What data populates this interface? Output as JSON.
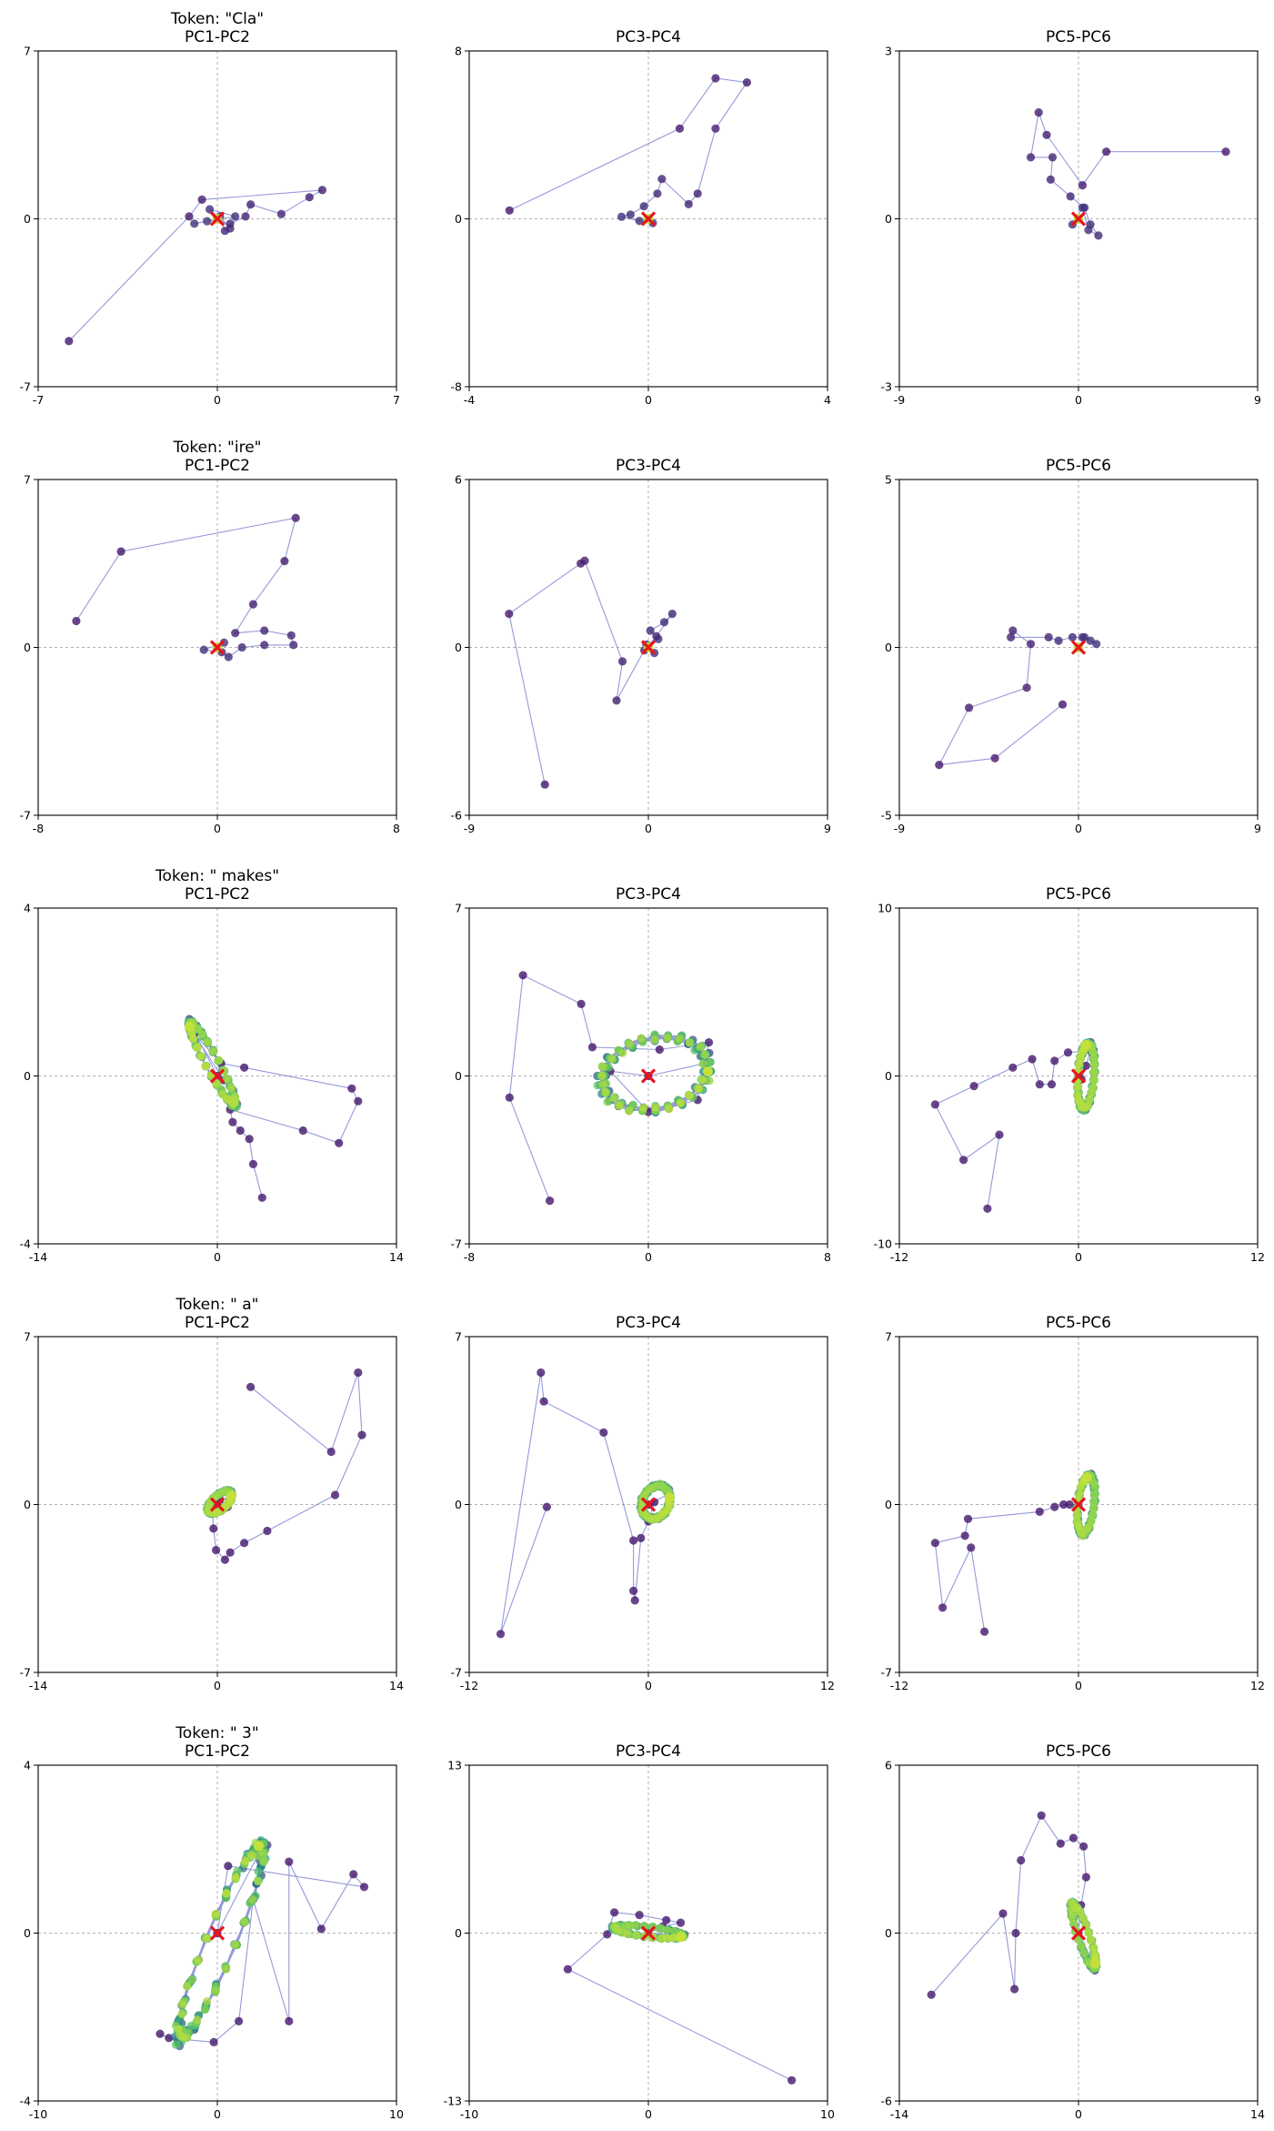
{
  "figure": {
    "background": "#ffffff",
    "rows": 5,
    "cols": 3
  },
  "style": {
    "line_color": "#7b7fcf",
    "early_point_color": "#44176b",
    "late_point_color": "#c5e13a",
    "marker_color": "#e8141c",
    "zero_line_color": "#b0b0b0"
  },
  "chart_data": [
    {
      "type": "scatter",
      "row": 0,
      "col": 0,
      "title_lines": [
        "Token: \"Cla\"",
        "PC1-PC2"
      ],
      "xlim": [
        -7,
        7
      ],
      "ylim": [
        -7,
        7
      ],
      "xticks": [
        "-7",
        "0",
        "7"
      ],
      "yticks": [
        "-7",
        "0",
        "7"
      ],
      "trajectory": [
        [
          -5.8,
          -5.1
        ],
        [
          -1.1,
          0.1
        ],
        [
          -0.6,
          0.8
        ],
        [
          4.1,
          1.2
        ],
        [
          3.6,
          0.9
        ],
        [
          2.5,
          0.2
        ],
        [
          1.3,
          0.6
        ],
        [
          1.1,
          0.1
        ],
        [
          0.5,
          -0.2
        ],
        [
          0.3,
          -0.5
        ],
        [
          0.1,
          0.1
        ],
        [
          0.5,
          -0.4
        ],
        [
          -0.3,
          0.4
        ],
        [
          0.7,
          0.1
        ],
        [
          -0.9,
          -0.2
        ],
        [
          -0.4,
          -0.1
        ],
        [
          0,
          0
        ]
      ],
      "cycles": 0,
      "origin_marker": [
        0,
        0
      ]
    },
    {
      "type": "scatter",
      "row": 0,
      "col": 1,
      "title_lines": [
        "PC3-PC4"
      ],
      "xlim": [
        -4,
        4
      ],
      "ylim": [
        -8,
        8
      ],
      "xticks": [
        "-4",
        "0",
        "4"
      ],
      "yticks": [
        "-8",
        "0",
        "8"
      ],
      "trajectory": [
        [
          -3.1,
          0.4
        ],
        [
          0.7,
          4.3
        ],
        [
          1.5,
          6.7
        ],
        [
          2.2,
          6.5
        ],
        [
          1.5,
          4.3
        ],
        [
          1.1,
          1.2
        ],
        [
          0.9,
          0.7
        ],
        [
          0.3,
          1.9
        ],
        [
          0.2,
          1.2
        ],
        [
          -0.1,
          0.6
        ],
        [
          -0.4,
          0.2
        ],
        [
          -0.6,
          0.1
        ],
        [
          -0.2,
          -0.1
        ],
        [
          0.1,
          -0.2
        ],
        [
          0,
          0
        ]
      ],
      "cycles": 0,
      "origin_marker": [
        0,
        0
      ]
    },
    {
      "type": "scatter",
      "row": 0,
      "col": 2,
      "title_lines": [
        "PC5-PC6"
      ],
      "xlim": [
        -9,
        9
      ],
      "ylim": [
        -3,
        3
      ],
      "xticks": [
        "-9",
        "0",
        "9"
      ],
      "yticks": [
        "-3",
        "0",
        "3"
      ],
      "trajectory": [
        [
          7.4,
          1.2
        ],
        [
          1.4,
          1.2
        ],
        [
          0.2,
          0.6
        ],
        [
          -1.6,
          1.5
        ],
        [
          -2.0,
          1.9
        ],
        [
          -2.4,
          1.1
        ],
        [
          -1.3,
          1.1
        ],
        [
          -1.4,
          0.7
        ],
        [
          -0.4,
          0.4
        ],
        [
          0.3,
          0.2
        ],
        [
          0.6,
          -0.1
        ],
        [
          1.0,
          -0.3
        ],
        [
          0.5,
          -0.2
        ],
        [
          0.2,
          0.2
        ],
        [
          -0.3,
          -0.1
        ],
        [
          0,
          0
        ]
      ],
      "cycles": 0,
      "origin_marker": [
        0,
        0
      ]
    },
    {
      "type": "scatter",
      "row": 1,
      "col": 0,
      "title_lines": [
        "Token: \"ire\"",
        "PC1-PC2"
      ],
      "xlim": [
        -8,
        8
      ],
      "ylim": [
        -7,
        7
      ],
      "xticks": [
        "-8",
        "0",
        "8"
      ],
      "yticks": [
        "-7",
        "0",
        "7"
      ],
      "trajectory": [
        [
          -6.3,
          1.1
        ],
        [
          -4.3,
          4.0
        ],
        [
          3.5,
          5.4
        ],
        [
          3.0,
          3.6
        ],
        [
          1.6,
          1.8
        ],
        [
          0.8,
          0.6
        ],
        [
          2.1,
          0.7
        ],
        [
          3.3,
          0.5
        ],
        [
          3.4,
          0.1
        ],
        [
          2.1,
          0.1
        ],
        [
          1.1,
          0.0
        ],
        [
          0.5,
          -0.4
        ],
        [
          0.2,
          -0.2
        ],
        [
          -0.6,
          -0.1
        ],
        [
          0.3,
          0.2
        ],
        [
          0,
          0
        ]
      ],
      "cycles": 0,
      "origin_marker": [
        0,
        0
      ]
    },
    {
      "type": "scatter",
      "row": 1,
      "col": 1,
      "title_lines": [
        "PC3-PC4"
      ],
      "xlim": [
        -9,
        9
      ],
      "ylim": [
        -6,
        6
      ],
      "xticks": [
        "-9",
        "0",
        "9"
      ],
      "yticks": [
        "-6",
        "0",
        "6"
      ],
      "trajectory": [
        [
          -5.2,
          -4.9
        ],
        [
          -7.0,
          1.2
        ],
        [
          -3.4,
          3.0
        ],
        [
          -3.2,
          3.1
        ],
        [
          -1.3,
          -0.5
        ],
        [
          -1.6,
          -1.9
        ],
        [
          -0.2,
          -0.1
        ],
        [
          0.4,
          0.4
        ],
        [
          1.2,
          1.2
        ],
        [
          0.8,
          0.9
        ],
        [
          0.1,
          0.6
        ],
        [
          0.5,
          0.3
        ],
        [
          -0.1,
          0.1
        ],
        [
          0.3,
          -0.2
        ],
        [
          0,
          0
        ]
      ],
      "cycles": 0,
      "origin_marker": [
        0,
        0
      ]
    },
    {
      "type": "scatter",
      "row": 1,
      "col": 2,
      "title_lines": [
        "PC5-PC6"
      ],
      "xlim": [
        -9,
        9
      ],
      "ylim": [
        -5,
        5
      ],
      "xticks": [
        "-9",
        "0",
        "9"
      ],
      "yticks": [
        "-5",
        "0",
        "5"
      ],
      "trajectory": [
        [
          -0.8,
          -1.7
        ],
        [
          -4.2,
          -3.3
        ],
        [
          -7.0,
          -3.5
        ],
        [
          -5.5,
          -1.8
        ],
        [
          -2.6,
          -1.2
        ],
        [
          -2.4,
          0.1
        ],
        [
          -3.3,
          0.5
        ],
        [
          -3.4,
          0.3
        ],
        [
          -1.5,
          0.3
        ],
        [
          -1.0,
          0.2
        ],
        [
          -0.3,
          0.3
        ],
        [
          0.2,
          0.3
        ],
        [
          0.6,
          0.2
        ],
        [
          0.9,
          0.1
        ],
        [
          0.3,
          0.3
        ],
        [
          0,
          0
        ]
      ],
      "cycles": 0,
      "origin_marker": [
        0,
        0
      ]
    },
    {
      "type": "scatter",
      "row": 2,
      "col": 0,
      "title_lines": [
        "Token: \" makes\"",
        "PC1-PC2"
      ],
      "xlim": [
        -14,
        14
      ],
      "ylim": [
        -4,
        4
      ],
      "xticks": [
        "-14",
        "0",
        "14"
      ],
      "yticks": [
        "-4",
        "0",
        "4"
      ],
      "trajectory": [
        [
          3.5,
          -2.9
        ],
        [
          2.8,
          -2.1
        ],
        [
          2.5,
          -1.5
        ],
        [
          1.8,
          -1.3
        ],
        [
          1.2,
          -1.1
        ],
        [
          1.0,
          -0.8
        ],
        [
          6.7,
          -1.3
        ],
        [
          9.5,
          -1.6
        ],
        [
          11.0,
          -0.6
        ],
        [
          10.5,
          -0.3
        ],
        [
          2.1,
          0.2
        ],
        [
          0.3,
          0.3
        ],
        [
          -1.8,
          1.0
        ],
        [
          0.5,
          -0.1
        ],
        [
          0,
          0
        ]
      ],
      "cycles": 8,
      "cycle_center": [
        -0.4,
        0.3
      ],
      "cycle_axis_a": [
        -1.75,
        0.95
      ],
      "cycle_axis_b": [
        0.28,
        0.18
      ],
      "origin_marker": [
        0,
        0
      ]
    },
    {
      "type": "scatter",
      "row": 2,
      "col": 1,
      "title_lines": [
        "PC3-PC4"
      ],
      "xlim": [
        -8,
        8
      ],
      "ylim": [
        -7,
        7
      ],
      "xticks": [
        "-8",
        "0",
        "8"
      ],
      "yticks": [
        "-7",
        "0",
        "7"
      ],
      "trajectory": [
        [
          -4.4,
          -5.2
        ],
        [
          -6.2,
          -0.9
        ],
        [
          -5.6,
          4.2
        ],
        [
          -3.0,
          3.0
        ],
        [
          -2.5,
          1.2
        ],
        [
          0.5,
          1.1
        ],
        [
          2.7,
          1.4
        ],
        [
          2.2,
          -1.0
        ],
        [
          0.0,
          -1.5
        ],
        [
          -1.7,
          0.2
        ],
        [
          0,
          0
        ]
      ],
      "cycles": 8,
      "cycle_center": [
        0.3,
        0.1
      ],
      "cycle_axis_a": [
        2.35,
        0.45
      ],
      "cycle_axis_b": [
        -0.3,
        1.45
      ],
      "origin_marker": [
        0,
        0
      ]
    },
    {
      "type": "scatter",
      "row": 2,
      "col": 2,
      "title_lines": [
        "PC5-PC6"
      ],
      "xlim": [
        -12,
        12
      ],
      "ylim": [
        -10,
        10
      ],
      "xticks": [
        "-12",
        "0",
        "12"
      ],
      "yticks": [
        "-10",
        "0",
        "10"
      ],
      "trajectory": [
        [
          -6.1,
          -7.9
        ],
        [
          -5.3,
          -3.5
        ],
        [
          -7.7,
          -5.0
        ],
        [
          -9.6,
          -1.7
        ],
        [
          -7.0,
          -0.6
        ],
        [
          -4.4,
          0.5
        ],
        [
          -3.1,
          1.0
        ],
        [
          -2.6,
          -0.5
        ],
        [
          -1.8,
          -0.5
        ],
        [
          -1.6,
          0.9
        ],
        [
          -0.7,
          1.4
        ],
        [
          0.8,
          1.5
        ],
        [
          0.5,
          0.6
        ],
        [
          0.2,
          -0.2
        ],
        [
          0,
          0
        ]
      ],
      "cycles": 8,
      "cycle_center": [
        0.5,
        0.0
      ],
      "cycle_axis_a": [
        0.15,
        1.9
      ],
      "cycle_axis_b": [
        0.55,
        0.0
      ],
      "origin_marker": [
        0,
        0
      ]
    },
    {
      "type": "scatter",
      "row": 3,
      "col": 0,
      "title_lines": [
        "Token: \" a\"",
        "PC1-PC2"
      ],
      "xlim": [
        -14,
        14
      ],
      "ylim": [
        -7,
        7
      ],
      "xticks": [
        "-14",
        "0",
        "14"
      ],
      "yticks": [
        "-7",
        "0",
        "7"
      ],
      "trajectory": [
        [
          2.6,
          4.9
        ],
        [
          8.9,
          2.2
        ],
        [
          11.0,
          5.5
        ],
        [
          11.3,
          2.9
        ],
        [
          9.2,
          0.4
        ],
        [
          3.9,
          -1.1
        ],
        [
          2.1,
          -1.6
        ],
        [
          1.0,
          -2.0
        ],
        [
          0.6,
          -2.3
        ],
        [
          -0.1,
          -1.9
        ],
        [
          -0.3,
          -1.0
        ],
        [
          -0.4,
          -0.2
        ],
        [
          0.8,
          -0.1
        ],
        [
          0.2,
          0.2
        ],
        [
          0,
          0
        ]
      ],
      "cycles": 6,
      "cycle_center": [
        0.2,
        0.1
      ],
      "cycle_axis_a": [
        0.9,
        0.35
      ],
      "cycle_axis_b": [
        -0.2,
        0.3
      ],
      "origin_marker": [
        0,
        0
      ]
    },
    {
      "type": "scatter",
      "row": 3,
      "col": 1,
      "title_lines": [
        "PC3-PC4"
      ],
      "xlim": [
        -12,
        12
      ],
      "ylim": [
        -7,
        7
      ],
      "xticks": [
        "-12",
        "0",
        "12"
      ],
      "yticks": [
        "-7",
        "0",
        "7"
      ],
      "trajectory": [
        [
          -6.8,
          -0.1
        ],
        [
          -9.9,
          -5.4
        ],
        [
          -7.2,
          5.5
        ],
        [
          -7.0,
          4.3
        ],
        [
          -3.0,
          3.0
        ],
        [
          -1.0,
          -1.5
        ],
        [
          -1.0,
          -3.6
        ],
        [
          -0.9,
          -4.0
        ],
        [
          -0.5,
          -1.4
        ],
        [
          0.0,
          -0.7
        ],
        [
          0.4,
          0.1
        ],
        [
          0,
          0
        ]
      ],
      "cycles": 6,
      "cycle_center": [
        0.5,
        0.1
      ],
      "cycle_axis_a": [
        0.9,
        0.35
      ],
      "cycle_axis_b": [
        -0.3,
        0.6
      ],
      "origin_marker": [
        0,
        0
      ]
    },
    {
      "type": "scatter",
      "row": 3,
      "col": 2,
      "title_lines": [
        "PC5-PC6"
      ],
      "xlim": [
        -12,
        12
      ],
      "ylim": [
        -7,
        7
      ],
      "xticks": [
        "-12",
        "0",
        "12"
      ],
      "yticks": [
        "-7",
        "0",
        "7"
      ],
      "trajectory": [
        [
          -6.3,
          -5.3
        ],
        [
          -7.2,
          -1.8
        ],
        [
          -9.1,
          -4.3
        ],
        [
          -9.6,
          -1.6
        ],
        [
          -7.6,
          -1.3
        ],
        [
          -7.4,
          -0.6
        ],
        [
          -2.6,
          -0.3
        ],
        [
          -1.6,
          -0.1
        ],
        [
          -0.6,
          0.0
        ],
        [
          -1.0,
          0.0
        ],
        [
          0,
          0
        ]
      ],
      "cycles": 6,
      "cycle_center": [
        0.5,
        0.0
      ],
      "cycle_axis_a": [
        0.2,
        1.2
      ],
      "cycle_axis_b": [
        0.55,
        0.0
      ],
      "origin_marker": [
        0,
        0
      ]
    },
    {
      "type": "scatter",
      "row": 4,
      "col": 0,
      "title_lines": [
        "Token: \" 3\"",
        "PC1-PC2"
      ],
      "xlim": [
        -10,
        10
      ],
      "ylim": [
        -4,
        4
      ],
      "xticks": [
        "-10",
        "0",
        "10"
      ],
      "yticks": [
        "-4",
        "0",
        "4"
      ],
      "trajectory": [
        [
          -2.2,
          -2.6
        ],
        [
          -3.2,
          -2.4
        ],
        [
          -2.7,
          -2.5
        ],
        [
          -0.2,
          -2.6
        ],
        [
          1.2,
          -2.1
        ],
        [
          2.0,
          0.8
        ],
        [
          4.0,
          -2.1
        ],
        [
          4.0,
          1.7
        ],
        [
          5.8,
          0.1
        ],
        [
          7.6,
          1.4
        ],
        [
          8.2,
          1.1
        ],
        [
          0.6,
          1.6
        ],
        [
          0,
          0
        ]
      ],
      "cycles": 8,
      "cycle_center": [
        0.2,
        -0.2
      ],
      "cycle_axis_a": [
        2.3,
        2.25
      ],
      "cycle_axis_b": [
        0.55,
        -0.35
      ],
      "origin_marker": [
        0,
        0
      ]
    },
    {
      "type": "scatter",
      "row": 4,
      "col": 1,
      "title_lines": [
        "PC3-PC4"
      ],
      "xlim": [
        -10,
        10
      ],
      "ylim": [
        -13,
        13
      ],
      "xticks": [
        "-10",
        "0",
        "10"
      ],
      "yticks": [
        "-13",
        "0",
        "13"
      ],
      "trajectory": [
        [
          8.0,
          -11.4
        ],
        [
          -4.5,
          -2.8
        ],
        [
          -2.3,
          -0.1
        ],
        [
          -1.9,
          1.6
        ],
        [
          -0.5,
          1.4
        ],
        [
          1.0,
          1.0
        ],
        [
          1.8,
          0.8
        ],
        [
          0.8,
          0.5
        ],
        [
          0,
          0
        ]
      ],
      "cycles": 5,
      "cycle_center": [
        0.0,
        0.1
      ],
      "cycle_axis_a": [
        1.9,
        -0.3
      ],
      "cycle_axis_b": [
        0.0,
        0.4
      ],
      "origin_marker": [
        0,
        0
      ]
    },
    {
      "type": "scatter",
      "row": 4,
      "col": 2,
      "title_lines": [
        "PC5-PC6"
      ],
      "xlim": [
        -14,
        14
      ],
      "ylim": [
        -6,
        6
      ],
      "xticks": [
        "-14",
        "0",
        "14"
      ],
      "yticks": [
        "-6",
        "0",
        "6"
      ],
      "trajectory": [
        [
          -11.5,
          -2.2
        ],
        [
          -5.9,
          0.7
        ],
        [
          -5.0,
          -2.0
        ],
        [
          -4.9,
          0.0
        ],
        [
          -4.5,
          2.6
        ],
        [
          -2.9,
          4.2
        ],
        [
          -1.4,
          3.2
        ],
        [
          -0.4,
          3.4
        ],
        [
          0.4,
          3.1
        ],
        [
          0.6,
          2.0
        ],
        [
          0.2,
          1.0
        ],
        [
          0,
          0
        ]
      ],
      "cycles": 6,
      "cycle_center": [
        0.4,
        -0.1
      ],
      "cycle_axis_a": [
        0.9,
        -1.1
      ],
      "cycle_axis_b": [
        -0.3,
        -0.25
      ],
      "origin_marker": [
        0,
        0
      ]
    }
  ]
}
